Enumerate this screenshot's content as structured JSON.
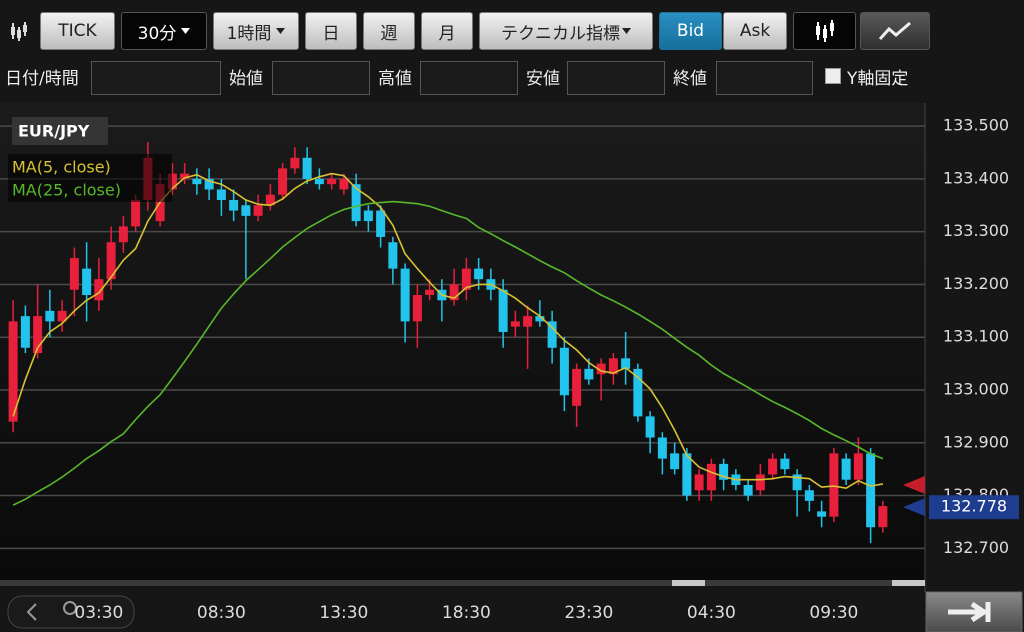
{
  "toolbar": {
    "buttons": [
      "TICK",
      "30分",
      "1時間",
      "日",
      "週",
      "月",
      "テクニカル指標",
      "Bid",
      "Ask"
    ]
  },
  "fields": {
    "labels": [
      "日付/時間",
      "始値",
      "高値",
      "安値",
      "終値"
    ],
    "y_fixed": "Y軸固定"
  },
  "chart_data": {
    "type": "candlestick",
    "title": "EUR/JPY",
    "categories": [
      null,
      null,
      null,
      null,
      null,
      null,
      null,
      "03:30",
      null,
      null,
      null,
      null,
      null,
      null,
      null,
      null,
      null,
      "08:30",
      null,
      null,
      null,
      null,
      null,
      null,
      null,
      null,
      null,
      "13:30",
      null,
      null,
      null,
      null,
      null,
      null,
      null,
      null,
      null,
      "18:30",
      null,
      null,
      null,
      null,
      null,
      null,
      null,
      null,
      null,
      "23:30",
      null,
      null,
      null,
      null,
      null,
      null,
      null,
      null,
      null,
      "04:30",
      null,
      null,
      null,
      null,
      null,
      null,
      null,
      null,
      null,
      "09:30",
      null,
      null,
      null,
      null
    ],
    "open": [
      132.94,
      133.14,
      133.07,
      133.15,
      133.13,
      133.19,
      133.23,
      133.17,
      133.21,
      133.28,
      133.31,
      133.36,
      133.32,
      133.38,
      133.4,
      133.4,
      133.4,
      133.38,
      133.36,
      133.35,
      133.33,
      133.35,
      133.37,
      133.42,
      133.44,
      133.4,
      133.39,
      133.38,
      133.39,
      133.34,
      133.34,
      133.28,
      133.23,
      133.13,
      133.18,
      133.19,
      133.17,
      133.19,
      133.23,
      133.21,
      133.19,
      133.12,
      133.12,
      133.14,
      133.13,
      133.08,
      132.97,
      133.04,
      133.03,
      133.03,
      133.06,
      133.04,
      132.95,
      132.91,
      132.88,
      132.88,
      132.81,
      132.81,
      132.86,
      132.84,
      132.82,
      132.81,
      132.84,
      132.87,
      132.84,
      132.81,
      132.77,
      132.76,
      132.87,
      132.83,
      132.88,
      132.74
    ],
    "high": [
      133.17,
      133.16,
      133.2,
      133.19,
      133.17,
      133.27,
      133.28,
      133.25,
      133.31,
      133.33,
      133.37,
      133.47,
      133.41,
      133.43,
      133.43,
      133.42,
      133.42,
      133.4,
      133.38,
      133.36,
      133.37,
      133.39,
      133.43,
      133.46,
      133.46,
      133.42,
      133.41,
      133.41,
      133.41,
      133.35,
      133.35,
      133.29,
      133.24,
      133.2,
      133.21,
      133.21,
      133.23,
      133.25,
      133.25,
      133.23,
      133.21,
      133.15,
      133.16,
      133.17,
      133.15,
      133.1,
      133.05,
      133.06,
      133.06,
      133.07,
      133.11,
      133.05,
      132.96,
      132.92,
      132.9,
      132.89,
      132.85,
      132.87,
      132.87,
      132.85,
      132.83,
      132.86,
      132.88,
      132.88,
      132.85,
      132.82,
      132.79,
      132.89,
      132.88,
      132.91,
      132.89,
      132.79
    ],
    "low": [
      132.92,
      133.07,
      133.06,
      133.1,
      133.11,
      133.14,
      133.13,
      133.15,
      133.19,
      133.26,
      133.3,
      133.34,
      133.31,
      133.37,
      133.39,
      133.37,
      133.36,
      133.33,
      133.32,
      133.21,
      133.32,
      133.34,
      133.36,
      133.41,
      133.39,
      133.38,
      133.38,
      133.37,
      133.31,
      133.3,
      133.27,
      133.2,
      133.09,
      133.08,
      133.17,
      133.13,
      133.16,
      133.17,
      133.19,
      133.17,
      133.08,
      133.1,
      133.04,
      133.12,
      133.05,
      132.96,
      132.93,
      133.01,
      132.98,
      133.01,
      133.01,
      132.94,
      132.88,
      132.84,
      132.84,
      132.79,
      132.79,
      132.79,
      132.81,
      132.81,
      132.79,
      132.8,
      132.83,
      132.84,
      132.76,
      132.77,
      132.74,
      132.75,
      132.82,
      132.82,
      132.71,
      132.73
    ],
    "close": [
      133.13,
      133.08,
      133.14,
      133.13,
      133.15,
      133.25,
      133.18,
      133.21,
      133.28,
      133.31,
      133.36,
      133.44,
      133.39,
      133.41,
      133.41,
      133.39,
      133.38,
      133.36,
      133.34,
      133.33,
      133.35,
      133.37,
      133.42,
      133.44,
      133.4,
      133.39,
      133.4,
      133.4,
      133.32,
      133.32,
      133.29,
      133.23,
      133.13,
      133.18,
      133.19,
      133.17,
      133.2,
      133.23,
      133.21,
      133.19,
      133.11,
      133.13,
      133.14,
      133.13,
      133.08,
      132.99,
      133.04,
      133.02,
      133.05,
      133.06,
      133.04,
      132.95,
      132.91,
      132.87,
      132.85,
      132.8,
      132.84,
      132.86,
      132.83,
      132.82,
      132.8,
      132.84,
      132.87,
      132.85,
      132.81,
      132.79,
      132.76,
      132.88,
      132.83,
      132.88,
      132.74,
      132.78
    ],
    "up_color": "#e8203c",
    "down_color": "#22c4ee",
    "series": [
      {
        "name": "MA(5, close)",
        "color": "#d8c232",
        "values": [
          132.95,
          133.02,
          133.08,
          133.11,
          133.126,
          133.15,
          133.17,
          133.184,
          133.214,
          133.246,
          133.268,
          133.32,
          133.356,
          133.382,
          133.402,
          133.408,
          133.396,
          133.39,
          133.376,
          133.36,
          133.352,
          133.35,
          133.362,
          133.382,
          133.396,
          133.404,
          133.41,
          133.406,
          133.382,
          133.366,
          133.346,
          133.312,
          133.258,
          133.23,
          133.204,
          133.18,
          133.174,
          133.194,
          133.2,
          133.2,
          133.188,
          133.174,
          133.156,
          133.14,
          133.118,
          133.094,
          133.076,
          133.052,
          133.036,
          133.032,
          133.042,
          133.024,
          133.002,
          132.966,
          132.924,
          132.876,
          132.854,
          132.844,
          132.836,
          132.83,
          132.83,
          132.83,
          132.832,
          132.836,
          132.834,
          132.832,
          132.816,
          132.818,
          132.814,
          132.828,
          132.818,
          132.822
        ]
      },
      {
        "name": "MA(25, close)",
        "color": "#58b82a",
        "values": [
          132.782,
          132.793,
          132.807,
          132.82,
          132.835,
          132.852,
          132.87,
          132.885,
          132.902,
          132.917,
          132.944,
          132.969,
          132.991,
          133.022,
          133.054,
          133.087,
          133.121,
          133.155,
          133.182,
          133.207,
          133.228,
          133.249,
          133.271,
          133.289,
          133.306,
          133.319,
          133.332,
          133.342,
          133.348,
          133.353,
          133.355,
          133.357,
          133.355,
          133.353,
          133.348,
          133.34,
          133.332,
          133.325,
          133.308,
          133.296,
          133.283,
          133.271,
          133.258,
          133.245,
          133.233,
          133.222,
          133.207,
          133.193,
          133.18,
          133.169,
          133.157,
          133.144,
          133.13,
          133.115,
          133.098,
          133.081,
          133.066,
          133.047,
          133.031,
          133.018,
          133.005,
          132.991,
          132.978,
          132.967,
          132.955,
          132.942,
          132.927,
          132.915,
          132.904,
          132.892,
          132.879,
          132.87
        ]
      }
    ],
    "legend": "top-left",
    "ylim": [
      132.64,
      133.54
    ],
    "yticks": [
      {
        "value": 132.7,
        "label": "132.700"
      },
      {
        "value": 132.8,
        "label": "132.800"
      },
      {
        "value": 132.9,
        "label": "132.900"
      },
      {
        "value": 133.0,
        "label": "133.000"
      },
      {
        "value": 133.1,
        "label": "133.100"
      },
      {
        "value": 133.2,
        "label": "133.200"
      },
      {
        "value": 133.3,
        "label": "133.300"
      },
      {
        "value": 133.4,
        "label": "133.400"
      },
      {
        "value": 133.5,
        "label": "133.500"
      }
    ],
    "grid": true,
    "ask_price": {
      "value": 132.82,
      "color": "#c41e2a"
    },
    "last_price": {
      "value": 132.778,
      "color": "#1f3d8f"
    }
  }
}
